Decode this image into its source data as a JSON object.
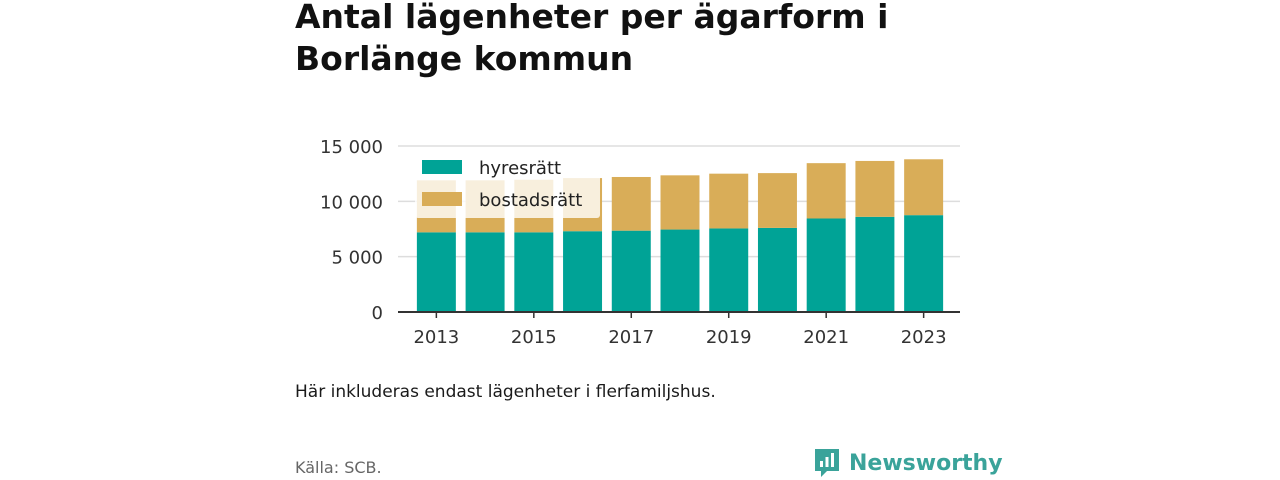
{
  "title": "Antal lägenheter per ägarform i Borlänge kommun",
  "note": "Här inkluderas endast lägenheter i flerfamiljshus.",
  "source": "Källa: SCB.",
  "brand": {
    "name": "Newsworthy",
    "icon": "newsworthy-logo-icon",
    "color": "#3aa39a"
  },
  "chart_data": {
    "type": "bar",
    "stacked": true,
    "categories": [
      "2013",
      "2014",
      "2015",
      "2016",
      "2017",
      "2018",
      "2019",
      "2020",
      "2021",
      "2022",
      "2023"
    ],
    "x_tick_labels": [
      "2013",
      "",
      "2015",
      "",
      "2017",
      "",
      "2019",
      "",
      "2021",
      "",
      "2023"
    ],
    "series": [
      {
        "name": "hyresrätt",
        "color": "#00a396",
        "values": [
          7200,
          7200,
          7200,
          7300,
          7350,
          7450,
          7550,
          7600,
          8450,
          8600,
          8750
        ]
      },
      {
        "name": "bostadsrätt",
        "color": "#d9ad58",
        "values": [
          4700,
          4700,
          4750,
          4800,
          4850,
          4900,
          4950,
          4950,
          5000,
          5050,
          5050
        ]
      }
    ],
    "y_ticks": [
      0,
      5000,
      10000,
      15000
    ],
    "y_tick_labels": [
      "0",
      "5 000",
      "10 000",
      "15 000"
    ],
    "ylim": [
      0,
      15000
    ],
    "grid": true,
    "legend_position": "top-left"
  }
}
